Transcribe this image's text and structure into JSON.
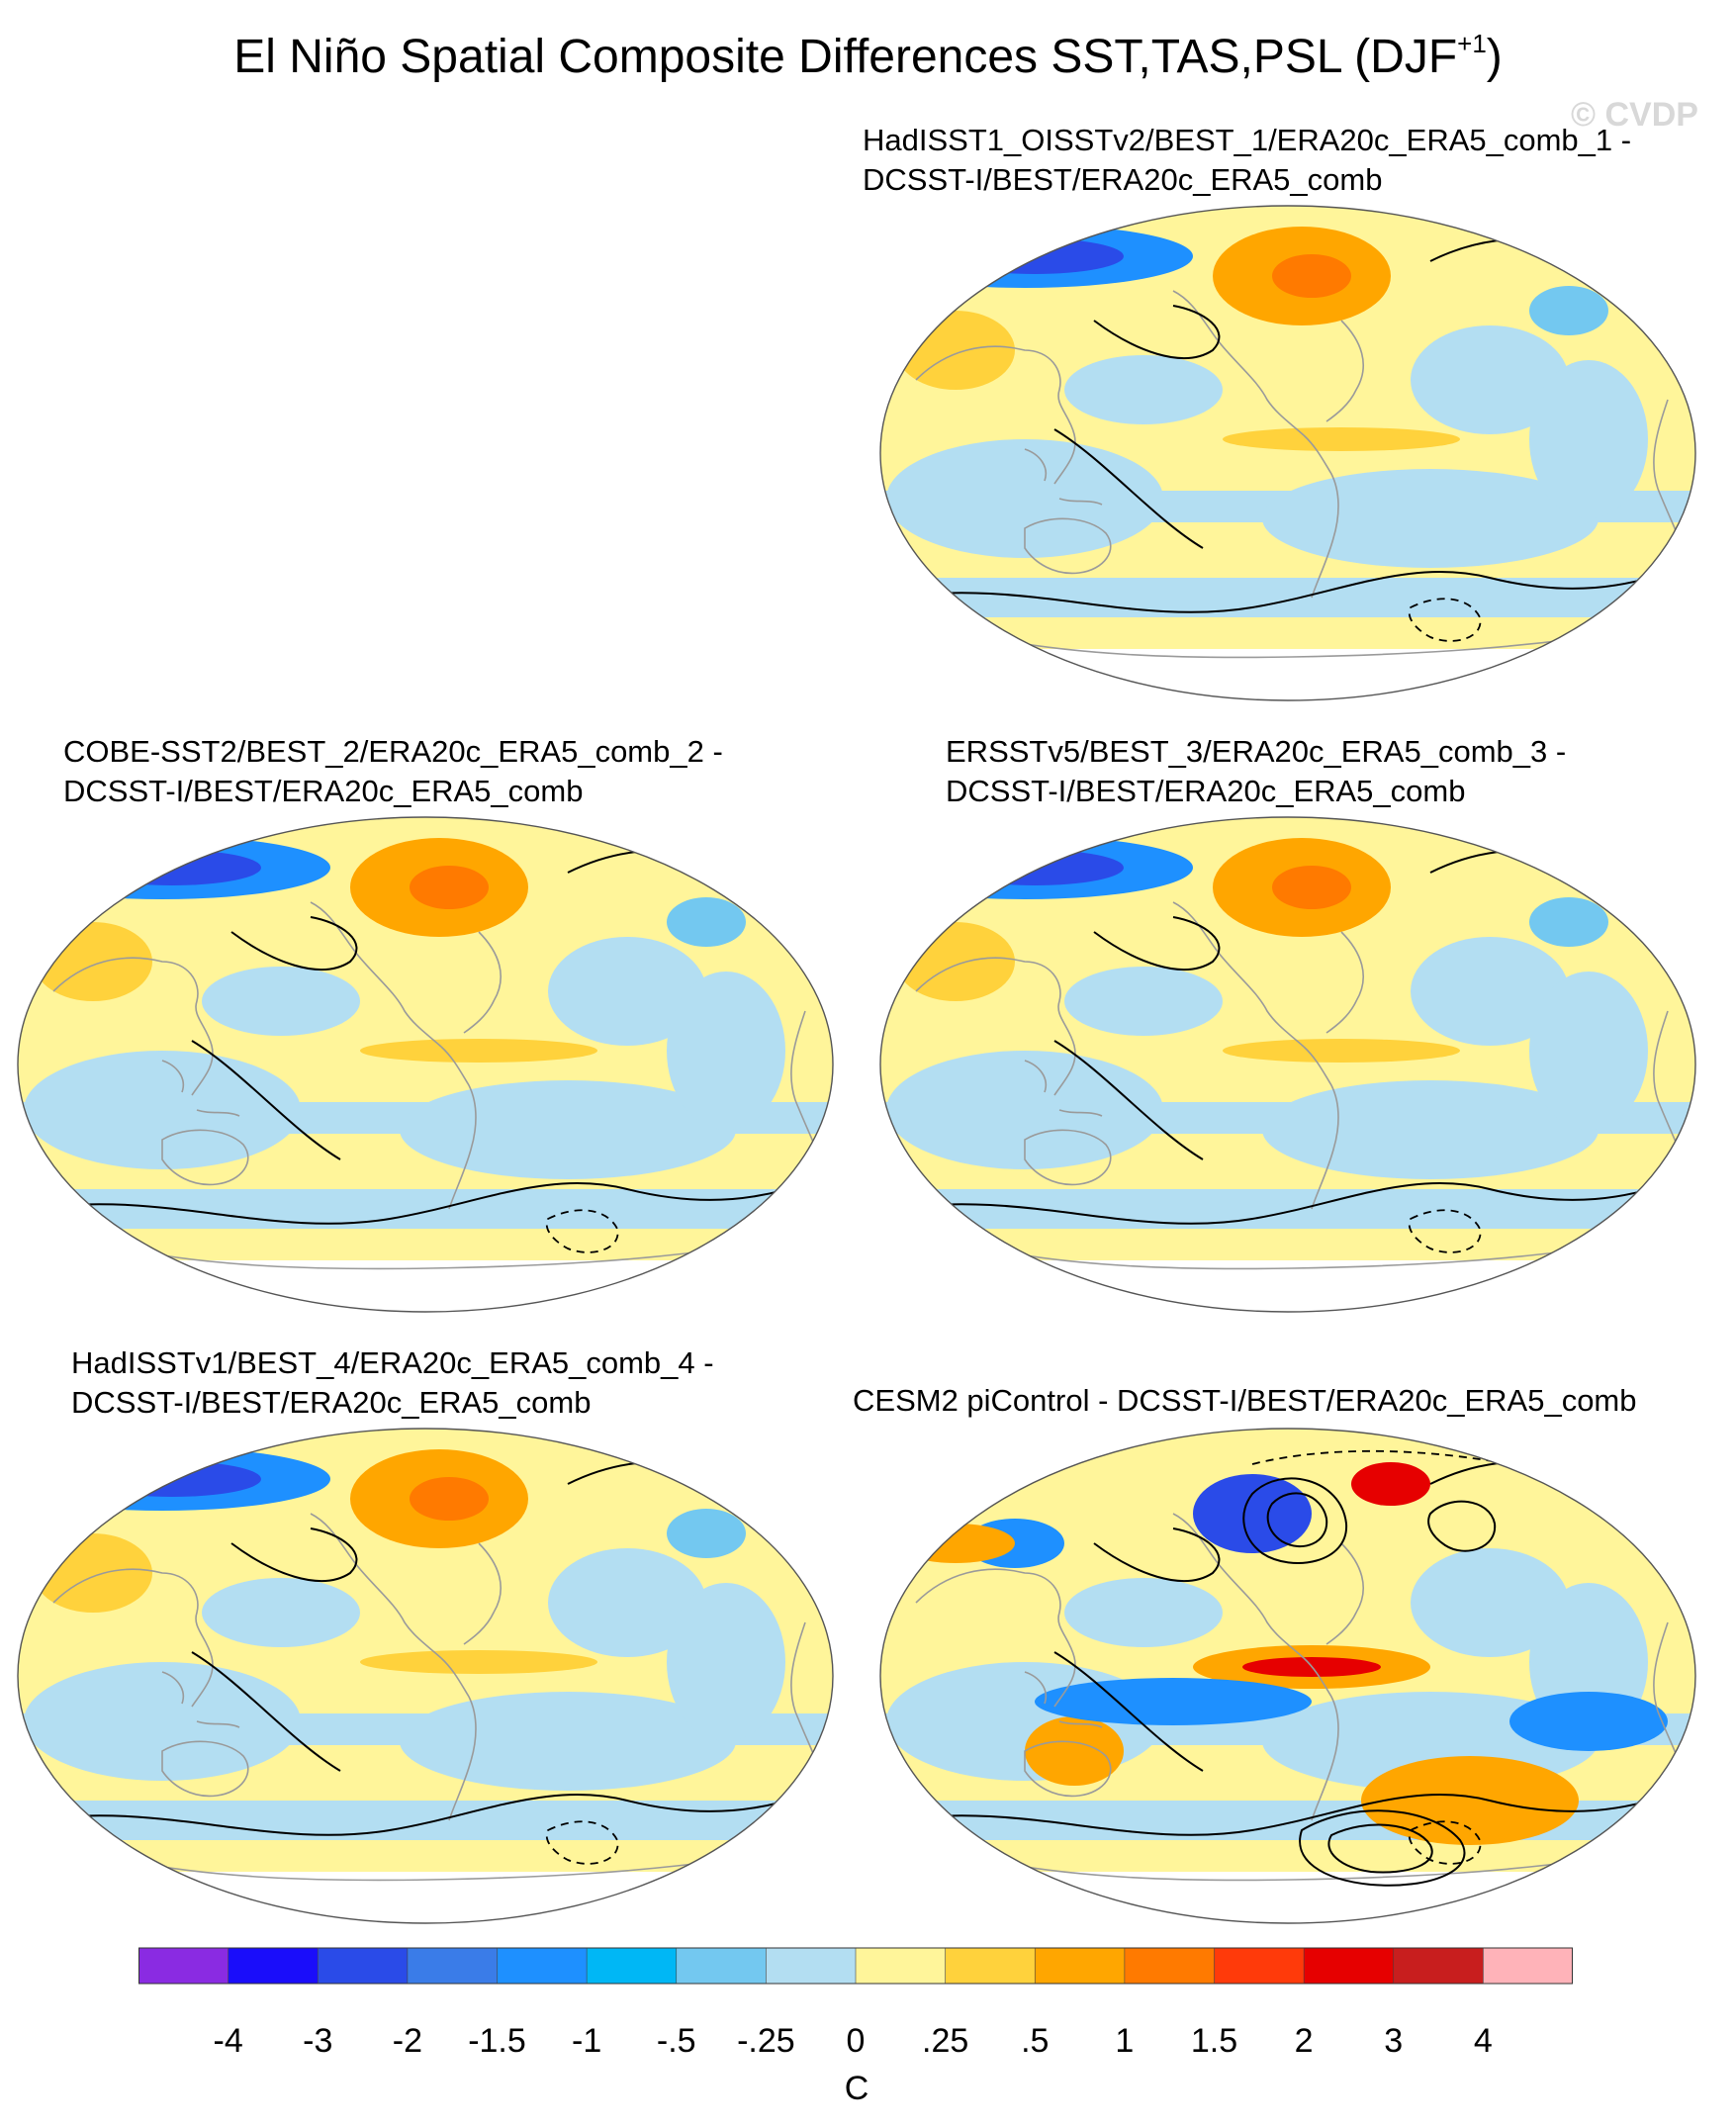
{
  "title": {
    "main": "El Niño Spatial Composite Differences SST,TAS,PSL (DJF",
    "superscript": "+1",
    "close": ")"
  },
  "watermark": "© CVDP",
  "panels": [
    {
      "id": "p1",
      "title_line1": "HadISST1_OISSTv2/BEST_1/ERA20c_ERA5_comb_1 -",
      "title_line2": "DCSST-I/BEST/ERA20c_ERA5_comb"
    },
    {
      "id": "p2",
      "title_line1": "COBE-SST2/BEST_2/ERA20c_ERA5_comb_2 -",
      "title_line2": "DCSST-I/BEST/ERA20c_ERA5_comb"
    },
    {
      "id": "p3",
      "title_line1": "ERSSTv5/BEST_3/ERA20c_ERA5_comb_3 -",
      "title_line2": "DCSST-I/BEST/ERA20c_ERA5_comb"
    },
    {
      "id": "p4",
      "title_line1": "HadISSTv1/BEST_4/ERA20c_ERA5_comb_4 -",
      "title_line2": "DCSST-I/BEST/ERA20c_ERA5_comb"
    },
    {
      "id": "p5",
      "title_line1": "CESM2 piControl - DCSST-I/BEST/ERA20c_ERA5_comb",
      "title_line2": ""
    }
  ],
  "colorbar": {
    "colors": [
      "#8a2be2",
      "#1a0dfa",
      "#2a4be8",
      "#3a7ce8",
      "#1e90ff",
      "#00b7f5",
      "#73c8f0",
      "#b3def2",
      "#fff59a",
      "#ffd23c",
      "#ffa600",
      "#ff7a00",
      "#ff3a0a",
      "#e60000",
      "#c81e1e",
      "#ffb3b9"
    ],
    "labels": [
      "-4",
      "-3",
      "-2",
      "-1.5",
      "-1",
      "-.5",
      "-.25",
      "0",
      ".25",
      ".5",
      "1",
      "1.5",
      "2",
      "3",
      "4"
    ],
    "units": "C"
  },
  "map_colors": {
    "ocean_base": "#fff59a",
    "cool_light": "#b3def2",
    "cool_mid": "#73c8f0",
    "cool_strong": "#1e90ff",
    "cool_deep": "#2a4be8",
    "warm_light": "#ffd23c",
    "warm_mid": "#ffa600",
    "warm_strong": "#ff7a00",
    "warm_deep": "#e60000",
    "antarctica": "#ffffff"
  }
}
